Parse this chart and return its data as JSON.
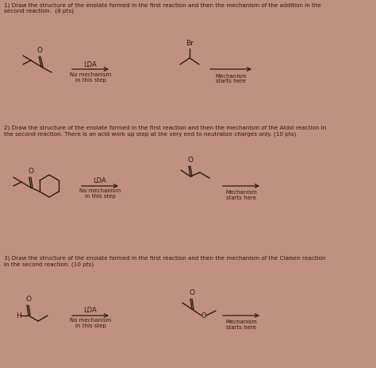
{
  "background_color": "#c09080",
  "text_color": "#2d1a10",
  "title1": "1) Draw the structure of the enolate formed in the first reaction and then the mechanism of the addition in the\nsecond reaction.  (8 pts)",
  "title2": "2) Draw the structure of the enolate formed in the first reaction and then the mechanism of the Aldol reaction in\nthe second reaction. There is an acid work up step at the very end to neutralize charges only. (10 pts)",
  "title3": "3) Draw the structure of the enolate formed in the first reaction and then the mechanism of the Claisen reaction\nin the second reaction. (10 pts)",
  "lda_label": "LDA",
  "no_mech": "No mechanism\nin this step",
  "mech_starts": "Mechanism\nstarts here"
}
